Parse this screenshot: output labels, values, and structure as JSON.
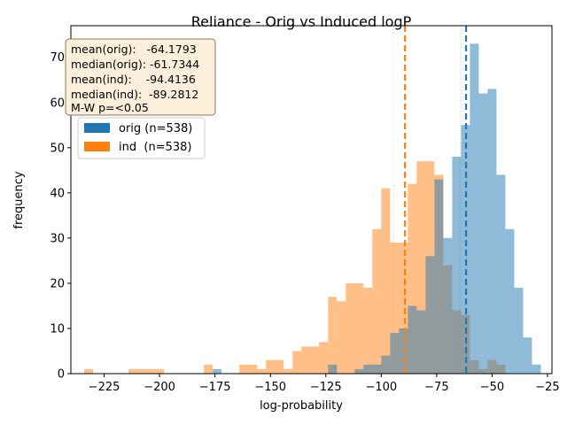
{
  "chart_data": {
    "type": "bar",
    "title": "Reliance - Orig vs Induced logP",
    "xlabel": "log-probability",
    "ylabel": "frequency",
    "xlim": [
      -240,
      -23
    ],
    "ylim": [
      0,
      77
    ],
    "xticks": [
      -225,
      -200,
      -175,
      -150,
      -125,
      -100,
      -75,
      -50,
      -25
    ],
    "yticks": [
      0,
      10,
      20,
      30,
      40,
      50,
      60,
      70
    ],
    "bin_width": 4,
    "colors": {
      "orig": "#1f77b4",
      "ind": "#ff7f0e",
      "overlap": "#c69c6d"
    },
    "stats_box": {
      "lines": [
        "mean(orig):   -64.1793",
        "median(orig): -61.7344",
        "mean(ind):    -94.4136",
        "median(ind):  -89.2812",
        "M-W p=<0.05"
      ]
    },
    "legend": {
      "position": "upper-left",
      "entries": [
        "orig (n=538)",
        "ind  (n=538)"
      ]
    },
    "series": [
      {
        "name": "orig (n=538)",
        "color": "#1f77b4",
        "bins": [
          [
            -176,
            1
          ],
          [
            -124,
            2
          ],
          [
            -112,
            1
          ],
          [
            -108,
            2
          ],
          [
            -104,
            2
          ],
          [
            -100,
            4
          ],
          [
            -96,
            9
          ],
          [
            -92,
            10
          ],
          [
            -88,
            15
          ],
          [
            -84,
            14
          ],
          [
            -80,
            26
          ],
          [
            -76,
            43
          ],
          [
            -72,
            30
          ],
          [
            -68,
            48
          ],
          [
            -64,
            55
          ],
          [
            -60,
            73
          ],
          [
            -56,
            62
          ],
          [
            -52,
            63
          ],
          [
            -48,
            44
          ],
          [
            -44,
            32
          ],
          [
            -40,
            19
          ],
          [
            -36,
            8
          ],
          [
            -32,
            2
          ]
        ]
      },
      {
        "name": "ind  (n=538)",
        "color": "#ff7f0e",
        "bins": [
          [
            -234,
            1
          ],
          [
            -214,
            1
          ],
          [
            -210,
            1
          ],
          [
            -206,
            1
          ],
          [
            -202,
            1
          ],
          [
            -180,
            2
          ],
          [
            -164,
            2
          ],
          [
            -160,
            2
          ],
          [
            -156,
            1
          ],
          [
            -152,
            3
          ],
          [
            -148,
            3
          ],
          [
            -144,
            1
          ],
          [
            -140,
            5
          ],
          [
            -136,
            6
          ],
          [
            -132,
            6
          ],
          [
            -128,
            7
          ],
          [
            -124,
            17
          ],
          [
            -120,
            16
          ],
          [
            -116,
            20
          ],
          [
            -112,
            20
          ],
          [
            -108,
            19
          ],
          [
            -104,
            32
          ],
          [
            -100,
            41
          ],
          [
            -96,
            29
          ],
          [
            -92,
            29
          ],
          [
            -88,
            42
          ],
          [
            -84,
            47
          ],
          [
            -80,
            47
          ],
          [
            -76,
            44
          ],
          [
            -72,
            24
          ],
          [
            -68,
            14
          ],
          [
            -64,
            13
          ],
          [
            -60,
            3
          ],
          [
            -56,
            1
          ],
          [
            -52,
            3
          ],
          [
            -48,
            2
          ]
        ]
      }
    ],
    "reference_lines": [
      {
        "series": "ind",
        "value": -89.2812,
        "style": "dashed",
        "color": "#ff7f0e"
      },
      {
        "series": "orig",
        "value": -61.7344,
        "style": "dashed",
        "color": "#1f77b4"
      },
      {
        "series": "ind",
        "value": -94.4136,
        "style": "dotted",
        "color": "#ff7f0e"
      },
      {
        "series": "orig",
        "value": -64.1793,
        "style": "dotted",
        "color": "#1f77b4"
      }
    ]
  }
}
